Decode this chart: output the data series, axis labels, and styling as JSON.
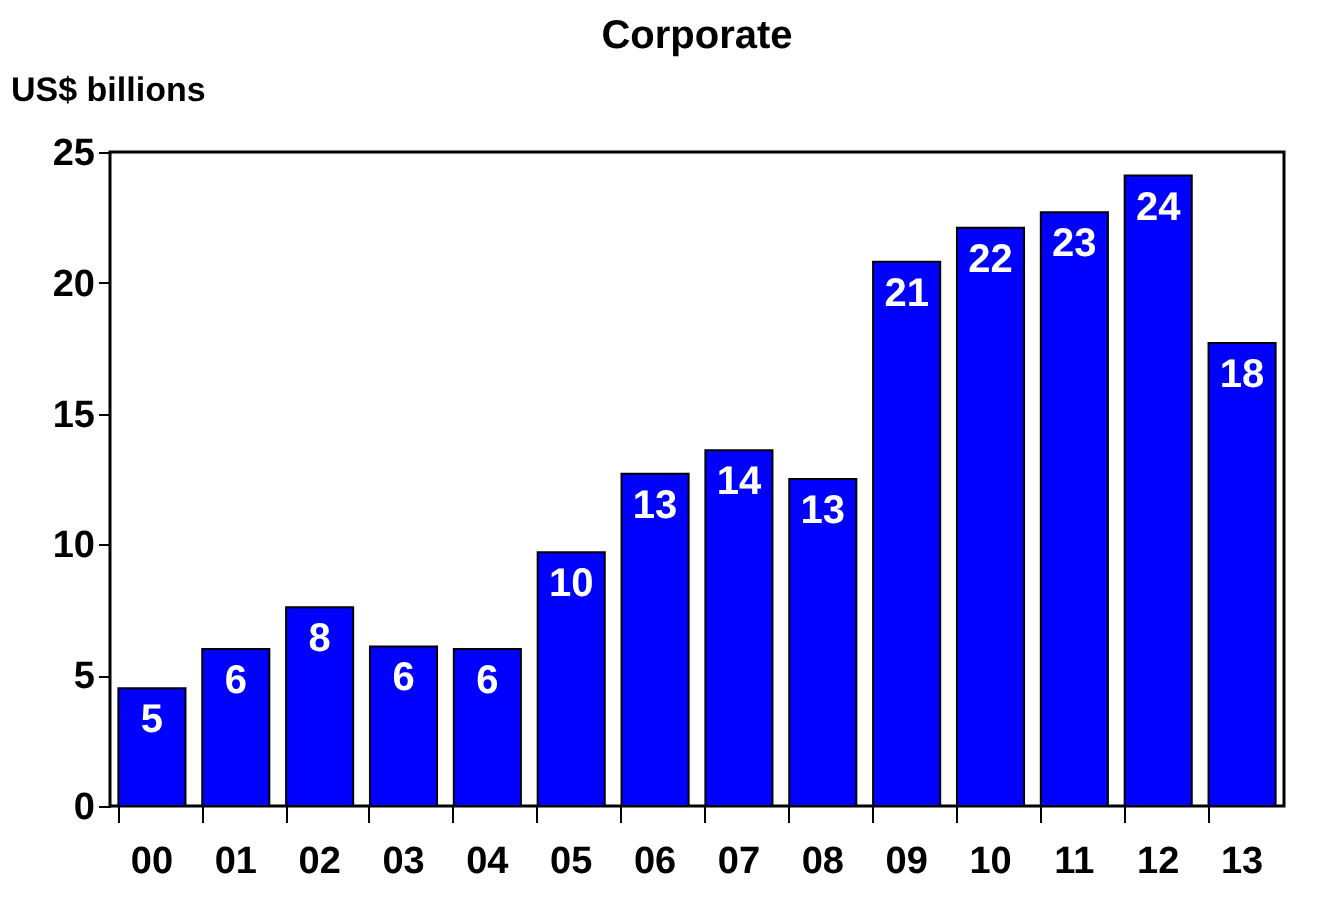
{
  "chart_data": {
    "type": "bar",
    "title": "Corporate",
    "ylabel": "US$ billions",
    "categories": [
      "00",
      "01",
      "02",
      "03",
      "04",
      "05",
      "06",
      "07",
      "08",
      "09",
      "10",
      "11",
      "12",
      "13"
    ],
    "series": [
      {
        "color": "#0000ff",
        "values": [
          4.5,
          6.0,
          7.6,
          6.1,
          6.0,
          9.7,
          12.7,
          13.6,
          12.5,
          20.8,
          22.1,
          22.7,
          24.1,
          17.7
        ]
      }
    ],
    "value_labels": [
      "5",
      "6",
      "8",
      "6",
      "6",
      "10",
      "13",
      "14",
      "13",
      "21",
      "22",
      "23",
      "24",
      "18"
    ],
    "ylim": [
      0,
      25
    ],
    "yticks": [
      0,
      5,
      10,
      15,
      20,
      25
    ],
    "grid": false
  }
}
